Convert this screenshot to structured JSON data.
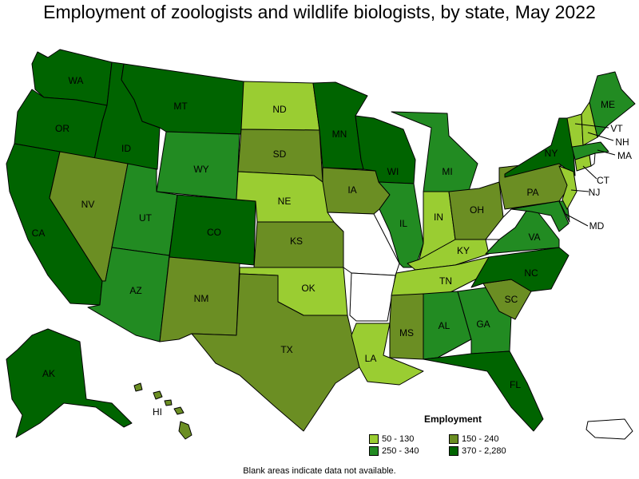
{
  "title": "Employment of zoologists and wildlife biologists, by state, May 2022",
  "legend": {
    "title": "Employment",
    "bins": [
      {
        "label": "50 - 130",
        "color": "#9acd32"
      },
      {
        "label": "150 - 240",
        "color": "#6b8e23"
      },
      {
        "label": "250 - 340",
        "color": "#228b22"
      },
      {
        "label": "370 - 2,280",
        "color": "#006400"
      }
    ]
  },
  "note": "Blank areas indicate data not available.",
  "colors": {
    "no_data": "#ffffff",
    "border": "#000000"
  },
  "states": {
    "WA": {
      "label": "WA",
      "bin": 3
    },
    "OR": {
      "label": "OR",
      "bin": 3
    },
    "CA": {
      "label": "CA",
      "bin": 3
    },
    "ID": {
      "label": "ID",
      "bin": 3
    },
    "NV": {
      "label": "NV",
      "bin": 1
    },
    "MT": {
      "label": "MT",
      "bin": 3
    },
    "WY": {
      "label": "WY",
      "bin": 2
    },
    "UT": {
      "label": "UT",
      "bin": 2
    },
    "AZ": {
      "label": "AZ",
      "bin": 2
    },
    "CO": {
      "label": "CO",
      "bin": 3
    },
    "NM": {
      "label": "NM",
      "bin": 1
    },
    "ND": {
      "label": "ND",
      "bin": 0
    },
    "SD": {
      "label": "SD",
      "bin": 1
    },
    "NE": {
      "label": "NE",
      "bin": 0
    },
    "KS": {
      "label": "KS",
      "bin": 1
    },
    "OK": {
      "label": "OK",
      "bin": 0
    },
    "TX": {
      "label": "TX",
      "bin": 1
    },
    "MN": {
      "label": "MN",
      "bin": 3
    },
    "IA": {
      "label": "IA",
      "bin": 1
    },
    "MO": {
      "label": "",
      "bin": -1
    },
    "AR": {
      "label": "",
      "bin": -1
    },
    "LA": {
      "label": "LA",
      "bin": 0
    },
    "WI": {
      "label": "WI",
      "bin": 3
    },
    "IL": {
      "label": "IL",
      "bin": 2
    },
    "MI": {
      "label": "MI",
      "bin": 2
    },
    "IN": {
      "label": "IN",
      "bin": 0
    },
    "OH": {
      "label": "OH",
      "bin": 1
    },
    "KY": {
      "label": "KY",
      "bin": 0
    },
    "TN": {
      "label": "TN",
      "bin": 0
    },
    "MS": {
      "label": "MS",
      "bin": 1
    },
    "AL": {
      "label": "AL",
      "bin": 2
    },
    "GA": {
      "label": "GA",
      "bin": 2
    },
    "FL": {
      "label": "FL",
      "bin": 3
    },
    "SC": {
      "label": "SC",
      "bin": 1
    },
    "NC": {
      "label": "NC",
      "bin": 3
    },
    "VA": {
      "label": "VA",
      "bin": 2
    },
    "WV": {
      "label": "",
      "bin": -1
    },
    "PA": {
      "label": "PA",
      "bin": 1
    },
    "NY": {
      "label": "NY",
      "bin": 3
    },
    "ME": {
      "label": "ME",
      "bin": 2
    },
    "VT": {
      "label": "VT",
      "bin": 0
    },
    "NH": {
      "label": "NH",
      "bin": 0
    },
    "MA": {
      "label": "MA",
      "bin": 2
    },
    "CT": {
      "label": "CT",
      "bin": 0
    },
    "RI": {
      "label": "",
      "bin": -1
    },
    "NJ": {
      "label": "NJ",
      "bin": 0
    },
    "DE": {
      "label": "",
      "bin": 2
    },
    "MD": {
      "label": "MD",
      "bin": 2
    },
    "AK": {
      "label": "AK",
      "bin": 3
    },
    "HI": {
      "label": "HI",
      "bin": 1
    },
    "PR": {
      "label": "",
      "bin": -1
    }
  }
}
